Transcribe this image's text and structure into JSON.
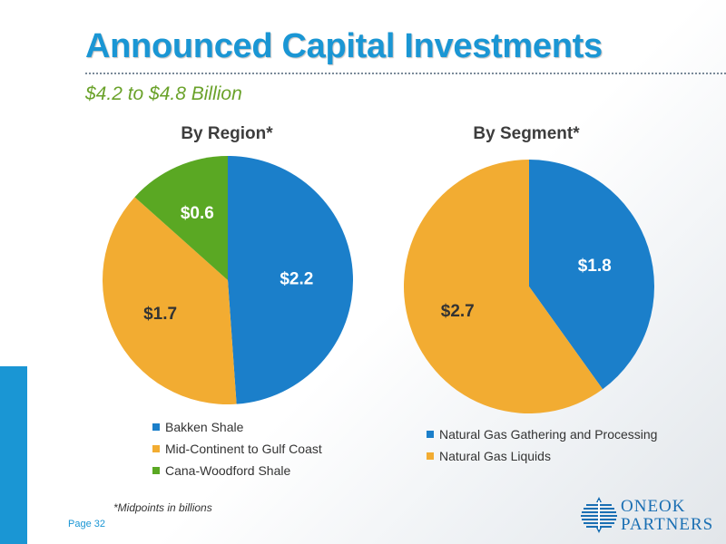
{
  "slide": {
    "title": "Announced Capital Investments",
    "subtitle": "$4.2 to $4.8 Billion",
    "footnote": "*Midpoints in billions",
    "page_label": "Page 32"
  },
  "logo": {
    "line1": "ONEOK",
    "line2": "PARTNERS",
    "icon": "oneok-logo-icon"
  },
  "colors": {
    "blue": "#1b7fca",
    "orange": "#f2ac32",
    "green": "#5aa823",
    "title": "#1a96d4",
    "subtitle": "#6aa22a"
  },
  "chart_data": [
    {
      "type": "pie",
      "title": "By Region*",
      "unit": "billions",
      "slices": [
        {
          "name": "Bakken Shale",
          "value": 2.2,
          "label": "$2.2",
          "color": "#1b7fca"
        },
        {
          "name": "Mid-Continent to Gulf Coast",
          "value": 1.7,
          "label": "$1.7",
          "color": "#f2ac32"
        },
        {
          "name": "Cana-Woodford Shale",
          "value": 0.6,
          "label": "$0.6",
          "color": "#5aa823"
        }
      ],
      "legend_position": "bottom"
    },
    {
      "type": "pie",
      "title": "By Segment*",
      "unit": "billions",
      "slices": [
        {
          "name": "Natural Gas Gathering and Processing",
          "value": 1.8,
          "label": "$1.8",
          "color": "#1b7fca"
        },
        {
          "name": "Natural Gas Liquids",
          "value": 2.7,
          "label": "$2.7",
          "color": "#f2ac32"
        }
      ],
      "legend_position": "bottom"
    }
  ]
}
